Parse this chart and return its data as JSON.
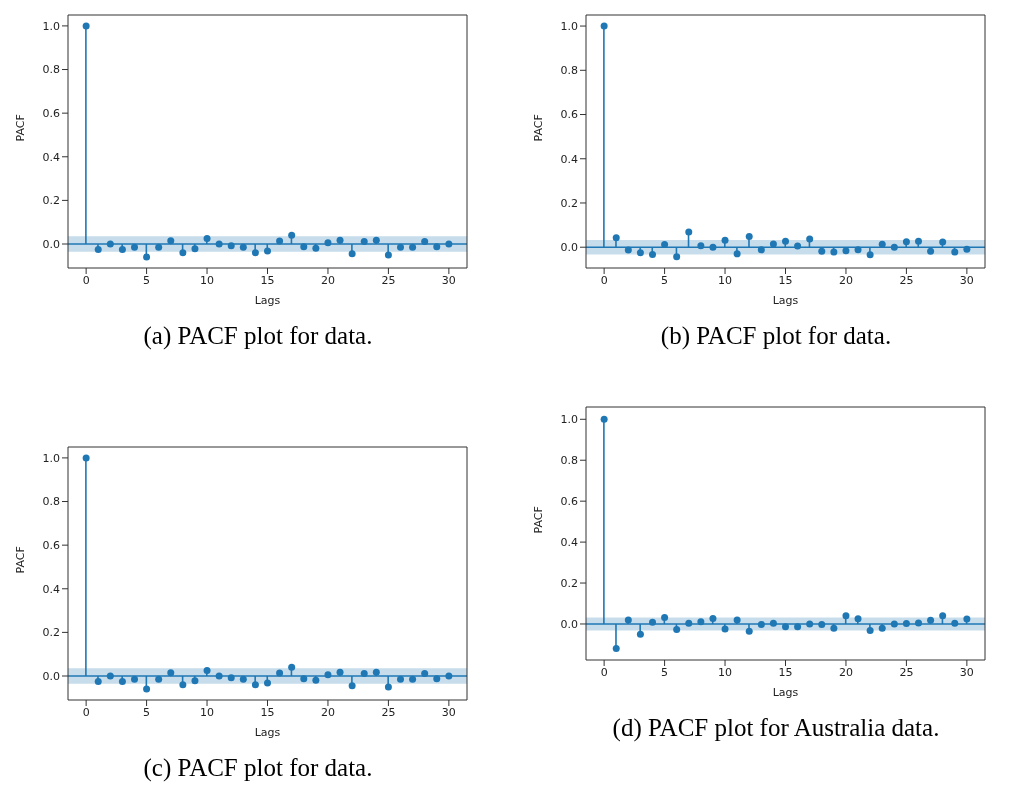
{
  "chart_data": [
    {
      "type": "lollipop",
      "ylabel": "PACF",
      "xlabel": "Lags",
      "annotations": [
        "(a) PACF plot for data."
      ],
      "x": [
        0,
        1,
        2,
        3,
        4,
        5,
        6,
        7,
        8,
        9,
        10,
        11,
        12,
        13,
        14,
        15,
        16,
        17,
        18,
        19,
        20,
        21,
        22,
        23,
        24,
        25,
        26,
        27,
        28,
        29,
        30
      ],
      "series": [
        {
          "color": "#1f77b4",
          "values": [
            1.0,
            -0.025,
            0.0,
            -0.025,
            -0.015,
            -0.06,
            -0.015,
            0.015,
            -0.04,
            -0.022,
            0.025,
            0.0,
            -0.008,
            -0.015,
            -0.04,
            -0.032,
            0.014,
            0.04,
            -0.012,
            -0.02,
            0.006,
            0.017,
            -0.045,
            0.012,
            0.017,
            -0.05,
            -0.015,
            -0.015,
            0.011,
            -0.012,
            0.0
          ]
        }
      ],
      "xlim": [
        -1.5,
        31.5
      ],
      "xticks": [
        0,
        5,
        10,
        15,
        20,
        25,
        30
      ],
      "ylim": [
        -0.11,
        1.05
      ],
      "yticks": [
        {
          "value": 0,
          "label": "0.0"
        },
        {
          "value": 0.2,
          "label": "0.2"
        },
        {
          "value": 0.4,
          "label": "0.4"
        },
        {
          "value": 0.6,
          "label": "0.6"
        },
        {
          "value": 0.8,
          "label": "0.8"
        },
        {
          "value": 1,
          "label": "1.0"
        }
      ],
      "bands": [
        {
          "axis": "y",
          "from": -0.036,
          "to": 0.036,
          "color": "#1f77b4"
        }
      ],
      "ref_lines": [
        {
          "axis": "y",
          "value": 0,
          "color": "#1f77b4"
        }
      ],
      "marker": "circle",
      "grid": false,
      "legend": false
    },
    {
      "type": "lollipop",
      "ylabel": "PACF",
      "xlabel": "Lags",
      "annotations": [
        "(b) PACF plot for data."
      ],
      "x": [
        0,
        1,
        2,
        3,
        4,
        5,
        6,
        7,
        8,
        9,
        10,
        11,
        12,
        13,
        14,
        15,
        16,
        17,
        18,
        19,
        20,
        21,
        22,
        23,
        24,
        25,
        26,
        27,
        28,
        29,
        30
      ],
      "series": [
        {
          "color": "#1f77b4",
          "values": [
            1.0,
            0.043,
            -0.013,
            -0.025,
            -0.033,
            0.012,
            -0.043,
            0.069,
            0.007,
            0.0,
            0.031,
            -0.03,
            0.048,
            -0.012,
            0.015,
            0.027,
            0.006,
            0.037,
            -0.018,
            -0.022,
            -0.016,
            -0.012,
            -0.034,
            0.013,
            0.0,
            0.025,
            0.027,
            -0.018,
            0.024,
            -0.022,
            -0.009
          ]
        }
      ],
      "xlim": [
        -1.5,
        31.5
      ],
      "xticks": [
        0,
        5,
        10,
        15,
        20,
        25,
        30
      ],
      "ylim": [
        -0.094,
        1.05
      ],
      "yticks": [
        {
          "value": 0,
          "label": "0.0"
        },
        {
          "value": 0.2,
          "label": "0.2"
        },
        {
          "value": 0.4,
          "label": "0.4"
        },
        {
          "value": 0.6,
          "label": "0.6"
        },
        {
          "value": 0.8,
          "label": "0.8"
        },
        {
          "value": 1,
          "label": "1.0"
        }
      ],
      "bands": [
        {
          "axis": "y",
          "from": -0.033,
          "to": 0.033,
          "color": "#1f77b4"
        }
      ],
      "ref_lines": [
        {
          "axis": "y",
          "value": 0,
          "color": "#1f77b4"
        }
      ],
      "marker": "circle",
      "grid": false,
      "legend": false
    },
    {
      "type": "lollipop",
      "ylabel": "PACF",
      "xlabel": "Lags",
      "annotations": [
        "(c) PACF plot for data."
      ],
      "x": [
        0,
        1,
        2,
        3,
        4,
        5,
        6,
        7,
        8,
        9,
        10,
        11,
        12,
        13,
        14,
        15,
        16,
        17,
        18,
        19,
        20,
        21,
        22,
        23,
        24,
        25,
        26,
        27,
        28,
        29,
        30
      ],
      "series": [
        {
          "color": "#1f77b4",
          "values": [
            1.0,
            -0.025,
            0.0,
            -0.025,
            -0.015,
            -0.06,
            -0.015,
            0.015,
            -0.04,
            -0.022,
            0.025,
            0.0,
            -0.008,
            -0.015,
            -0.04,
            -0.032,
            0.014,
            0.04,
            -0.012,
            -0.02,
            0.006,
            0.017,
            -0.045,
            0.012,
            0.017,
            -0.05,
            -0.015,
            -0.015,
            0.011,
            -0.012,
            0.0
          ]
        }
      ],
      "xlim": [
        -1.5,
        31.5
      ],
      "xticks": [
        0,
        5,
        10,
        15,
        20,
        25,
        30
      ],
      "ylim": [
        -0.11,
        1.05
      ],
      "yticks": [
        {
          "value": 0,
          "label": "0.0"
        },
        {
          "value": 0.2,
          "label": "0.2"
        },
        {
          "value": 0.4,
          "label": "0.4"
        },
        {
          "value": 0.6,
          "label": "0.6"
        },
        {
          "value": 0.8,
          "label": "0.8"
        },
        {
          "value": 1,
          "label": "1.0"
        }
      ],
      "bands": [
        {
          "axis": "y",
          "from": -0.036,
          "to": 0.036,
          "color": "#1f77b4"
        }
      ],
      "ref_lines": [
        {
          "axis": "y",
          "value": 0,
          "color": "#1f77b4"
        }
      ],
      "marker": "circle",
      "grid": false,
      "legend": false
    },
    {
      "type": "lollipop",
      "ylabel": "PACF",
      "xlabel": "Lags",
      "annotations": [
        "(d) PACF plot for Australia data."
      ],
      "x": [
        0,
        1,
        2,
        3,
        4,
        5,
        6,
        7,
        8,
        9,
        10,
        11,
        12,
        13,
        14,
        15,
        16,
        17,
        18,
        19,
        20,
        21,
        22,
        23,
        24,
        25,
        26,
        27,
        28,
        29,
        30
      ],
      "series": [
        {
          "color": "#1f77b4",
          "values": [
            1.0,
            -0.12,
            0.019,
            -0.05,
            0.008,
            0.032,
            -0.027,
            0.003,
            0.011,
            0.027,
            -0.024,
            0.019,
            -0.035,
            -0.002,
            0.003,
            -0.013,
            -0.013,
            0.0,
            -0.002,
            -0.021,
            0.04,
            0.026,
            -0.032,
            -0.021,
            0.0,
            0.002,
            0.005,
            0.018,
            0.04,
            0.003,
            0.024
          ]
        }
      ],
      "xlim": [
        -1.5,
        31.5
      ],
      "xticks": [
        0,
        5,
        10,
        15,
        20,
        25,
        30
      ],
      "ylim": [
        -0.176,
        1.06
      ],
      "yticks": [
        {
          "value": 0,
          "label": "0.0"
        },
        {
          "value": 0.2,
          "label": "0.2"
        },
        {
          "value": 0.4,
          "label": "0.4"
        },
        {
          "value": 0.6,
          "label": "0.6"
        },
        {
          "value": 0.8,
          "label": "0.8"
        },
        {
          "value": 1,
          "label": "1.0"
        }
      ],
      "bands": [
        {
          "axis": "y",
          "from": -0.032,
          "to": 0.032,
          "color": "#1f77b4"
        }
      ],
      "ref_lines": [
        {
          "axis": "y",
          "value": 0,
          "color": "#1f77b4"
        }
      ],
      "marker": "circle",
      "grid": false,
      "legend": false
    }
  ]
}
